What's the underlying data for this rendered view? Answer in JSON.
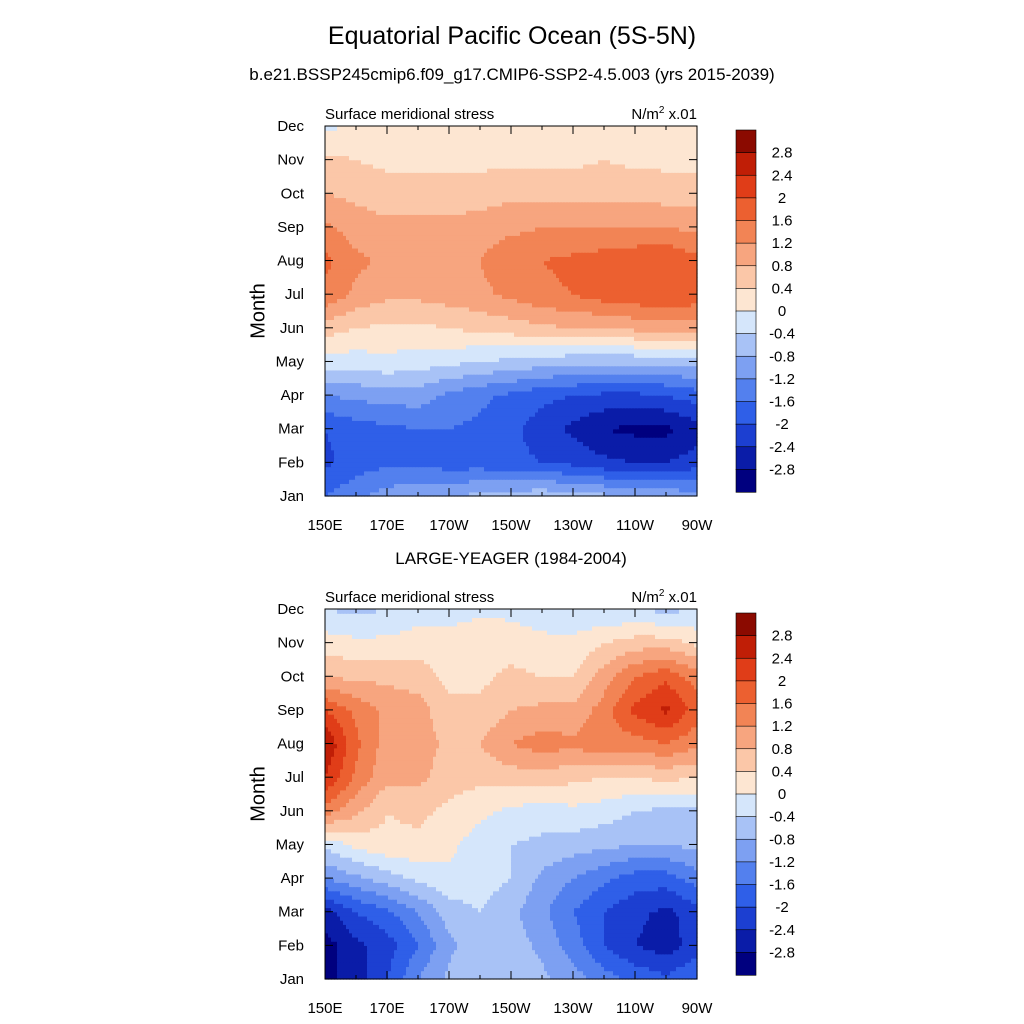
{
  "figure": {
    "title": "Equatorial Pacific Ocean (5S-5N)",
    "subtitle": "b.e21.BSSP245cmip6.f09_g17.CMIP6-SSP2-4.5.003 (yrs 2015-2039)"
  },
  "colors": {
    "levels_palette": [
      "#00007f",
      "#0a1ca8",
      "#1c3fd1",
      "#2f5fe8",
      "#5380ee",
      "#7da0f2",
      "#a8c2f6",
      "#d5e6fb",
      "#fde6d2",
      "#fbc7a8",
      "#f7a57f",
      "#f28455",
      "#ec6030",
      "#e03d18",
      "#c01e06",
      "#8b0a00"
    ]
  },
  "chart_data": [
    {
      "type": "heatmap",
      "panel_title": "",
      "left_label": "Surface meridional stress",
      "units_label": "N/m",
      "units_sup": "2",
      "units_suffix": " x.01",
      "ylabel": "Month",
      "xticks": [
        "150E",
        "170E",
        "170W",
        "150W",
        "130W",
        "110W",
        "90W"
      ],
      "x_lon": [
        150,
        170,
        190,
        210,
        230,
        250,
        270
      ],
      "yticks": [
        "Jan",
        "Feb",
        "Mar",
        "Apr",
        "May",
        "Jun",
        "Jul",
        "Aug",
        "Sep",
        "Oct",
        "Nov",
        "Dec"
      ],
      "xlim": [
        150,
        270
      ],
      "ylim": [
        1,
        12
      ],
      "colorbar_levels": [
        "2.8",
        "2.4",
        "2",
        "1.6",
        "1.2",
        "0.8",
        "0.4",
        "0",
        "-0.4",
        "-0.8",
        "-1.2",
        "-1.6",
        "-2",
        "-2.4",
        "-2.8"
      ],
      "values": [
        [
          -1.6,
          -1.3,
          -1.0,
          -0.9,
          -0.8,
          -0.7,
          -0.6,
          -0.5,
          -0.6,
          -0.7,
          -0.8,
          -0.9,
          -1.0
        ],
        [
          -2.1,
          -1.8,
          -1.7,
          -1.7,
          -1.8,
          -1.8,
          -1.9,
          -2.0,
          -2.1,
          -2.3,
          -2.4,
          -2.4,
          -2.2
        ],
        [
          -2.0,
          -1.8,
          -1.7,
          -1.6,
          -1.6,
          -1.7,
          -1.9,
          -2.2,
          -2.5,
          -2.8,
          -2.9,
          -2.9,
          -2.6
        ],
        [
          -1.2,
          -1.1,
          -1.0,
          -1.0,
          -1.3,
          -1.5,
          -1.7,
          -1.9,
          -2.0,
          -2.1,
          -2.1,
          -2.0,
          -1.8
        ],
        [
          -0.2,
          -0.2,
          -0.1,
          -0.2,
          -0.3,
          -0.4,
          -0.5,
          -0.6,
          -0.7,
          -0.7,
          -0.7,
          -0.7,
          -0.6
        ],
        [
          0.6,
          0.4,
          0.3,
          0.3,
          0.4,
          0.5,
          0.6,
          0.7,
          0.8,
          0.8,
          0.9,
          0.9,
          0.9
        ],
        [
          1.5,
          1.1,
          0.9,
          0.9,
          1.0,
          1.1,
          1.3,
          1.5,
          1.6,
          1.8,
          1.9,
          2.0,
          1.9
        ],
        [
          1.7,
          1.3,
          1.1,
          1.1,
          1.1,
          1.2,
          1.5,
          1.6,
          1.7,
          1.8,
          1.9,
          2.0,
          1.7
        ],
        [
          1.3,
          1.0,
          0.9,
          0.9,
          0.9,
          1.0,
          1.1,
          1.2,
          1.2,
          1.2,
          1.2,
          1.2,
          1.1
        ],
        [
          0.8,
          0.7,
          0.6,
          0.6,
          0.6,
          0.6,
          0.7,
          0.7,
          0.7,
          0.7,
          0.7,
          0.6,
          0.6
        ],
        [
          0.5,
          0.4,
          0.3,
          0.3,
          0.3,
          0.3,
          0.3,
          0.3,
          0.3,
          0.4,
          0.3,
          0.3,
          0.3
        ],
        [
          -0.1,
          0.1,
          0.2,
          0.2,
          0.2,
          0.2,
          0.2,
          0.2,
          0.2,
          0.3,
          0.2,
          0.2,
          0.1
        ]
      ]
    },
    {
      "type": "heatmap",
      "panel_title": "LARGE-YEAGER (1984-2004)",
      "left_label": "Surface meridional stress",
      "units_label": "N/m",
      "units_sup": "2",
      "units_suffix": " x.01",
      "ylabel": "Month",
      "xticks": [
        "150E",
        "170E",
        "170W",
        "150W",
        "130W",
        "110W",
        "90W"
      ],
      "x_lon": [
        150,
        170,
        190,
        210,
        230,
        250,
        270
      ],
      "yticks": [
        "Jan",
        "Feb",
        "Mar",
        "Apr",
        "May",
        "Jun",
        "Jul",
        "Aug",
        "Sep",
        "Oct",
        "Nov",
        "Dec"
      ],
      "xlim": [
        150,
        270
      ],
      "ylim": [
        1,
        12
      ],
      "colorbar_levels": [
        "2.8",
        "2.4",
        "2",
        "1.6",
        "1.2",
        "0.8",
        "0.4",
        "0",
        "-0.4",
        "-0.8",
        "-1.2",
        "-1.6",
        "-2",
        "-2.4",
        "-2.8"
      ],
      "values": [
        [
          -2.9,
          -2.6,
          -2.0,
          -1.2,
          -0.7,
          -0.5,
          -0.5,
          -0.7,
          -1.0,
          -1.4,
          -1.7,
          -1.9,
          -1.6
        ],
        [
          -3.0,
          -2.5,
          -2.2,
          -1.6,
          -0.9,
          -0.5,
          -0.6,
          -0.9,
          -1.4,
          -2.0,
          -2.4,
          -2.6,
          -2.2
        ],
        [
          -2.6,
          -2.0,
          -1.7,
          -1.2,
          -0.6,
          -0.4,
          -0.7,
          -1.1,
          -1.6,
          -2.0,
          -2.3,
          -2.5,
          -2.2
        ],
        [
          -1.2,
          -0.9,
          -0.6,
          -0.3,
          -0.1,
          -0.2,
          -0.4,
          -0.9,
          -1.2,
          -1.5,
          -1.8,
          -1.8,
          -1.4
        ],
        [
          -0.3,
          0.1,
          0.3,
          0.3,
          0.1,
          -0.2,
          -0.4,
          -0.5,
          -0.6,
          -0.7,
          -0.8,
          -0.8,
          -0.7
        ],
        [
          1.4,
          0.9,
          0.4,
          0.5,
          0.3,
          0.1,
          -0.1,
          -0.2,
          -0.1,
          -0.2,
          -0.4,
          -0.5,
          -0.5
        ],
        [
          2.4,
          1.5,
          0.9,
          0.9,
          0.6,
          0.5,
          0.6,
          0.6,
          0.5,
          0.4,
          0.4,
          0.5,
          0.4
        ],
        [
          2.8,
          1.7,
          1.0,
          1.0,
          0.7,
          0.8,
          1.2,
          1.4,
          1.3,
          1.5,
          1.4,
          1.6,
          1.3
        ],
        [
          2.0,
          1.5,
          1.1,
          1.0,
          0.5,
          0.5,
          0.8,
          0.9,
          0.9,
          1.4,
          2.1,
          2.5,
          1.8
        ],
        [
          0.8,
          0.7,
          0.7,
          0.6,
          0.3,
          0.3,
          0.5,
          0.4,
          0.4,
          1.0,
          1.6,
          1.9,
          1.4
        ],
        [
          0.2,
          0.1,
          0.1,
          0.2,
          0.2,
          0.3,
          0.2,
          0.1,
          0.1,
          0.4,
          0.6,
          0.6,
          0.3
        ],
        [
          -0.4,
          -0.5,
          -0.4,
          -0.2,
          -0.2,
          -0.1,
          -0.1,
          -0.2,
          -0.3,
          -0.4,
          -0.4,
          -0.5,
          -0.4
        ]
      ]
    }
  ]
}
